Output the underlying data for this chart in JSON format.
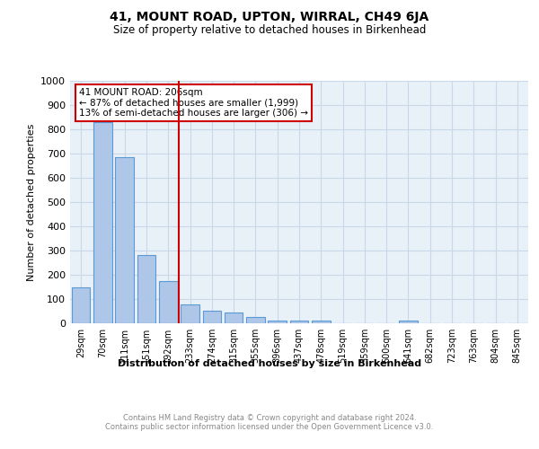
{
  "title": "41, MOUNT ROAD, UPTON, WIRRAL, CH49 6JA",
  "subtitle": "Size of property relative to detached houses in Birkenhead",
  "xlabel": "Distribution of detached houses by size in Birkenhead",
  "ylabel": "Number of detached properties",
  "footer_line1": "Contains HM Land Registry data © Crown copyright and database right 2024.",
  "footer_line2": "Contains public sector information licensed under the Open Government Licence v3.0.",
  "bar_labels": [
    "29sqm",
    "70sqm",
    "111sqm",
    "151sqm",
    "192sqm",
    "233sqm",
    "274sqm",
    "315sqm",
    "355sqm",
    "396sqm",
    "437sqm",
    "478sqm",
    "519sqm",
    "559sqm",
    "600sqm",
    "641sqm",
    "682sqm",
    "723sqm",
    "763sqm",
    "804sqm",
    "845sqm"
  ],
  "bar_values": [
    148,
    830,
    686,
    281,
    175,
    78,
    52,
    45,
    25,
    12,
    12,
    12,
    0,
    0,
    0,
    12,
    0,
    0,
    0,
    0,
    0
  ],
  "bar_color": "#aec6e8",
  "bar_edge_color": "#5b9bd5",
  "ylim": [
    0,
    1000
  ],
  "yticks": [
    0,
    100,
    200,
    300,
    400,
    500,
    600,
    700,
    800,
    900,
    1000
  ],
  "vline_x": 4.5,
  "vline_color": "#cc0000",
  "annotation_title": "41 MOUNT ROAD: 206sqm",
  "annotation_line2": "← 87% of detached houses are smaller (1,999)",
  "annotation_line3": "13% of semi-detached houses are larger (306) →",
  "annotation_box_color": "#cc0000",
  "grid_color": "#c8d8e8",
  "bg_color": "#e8f0f8"
}
